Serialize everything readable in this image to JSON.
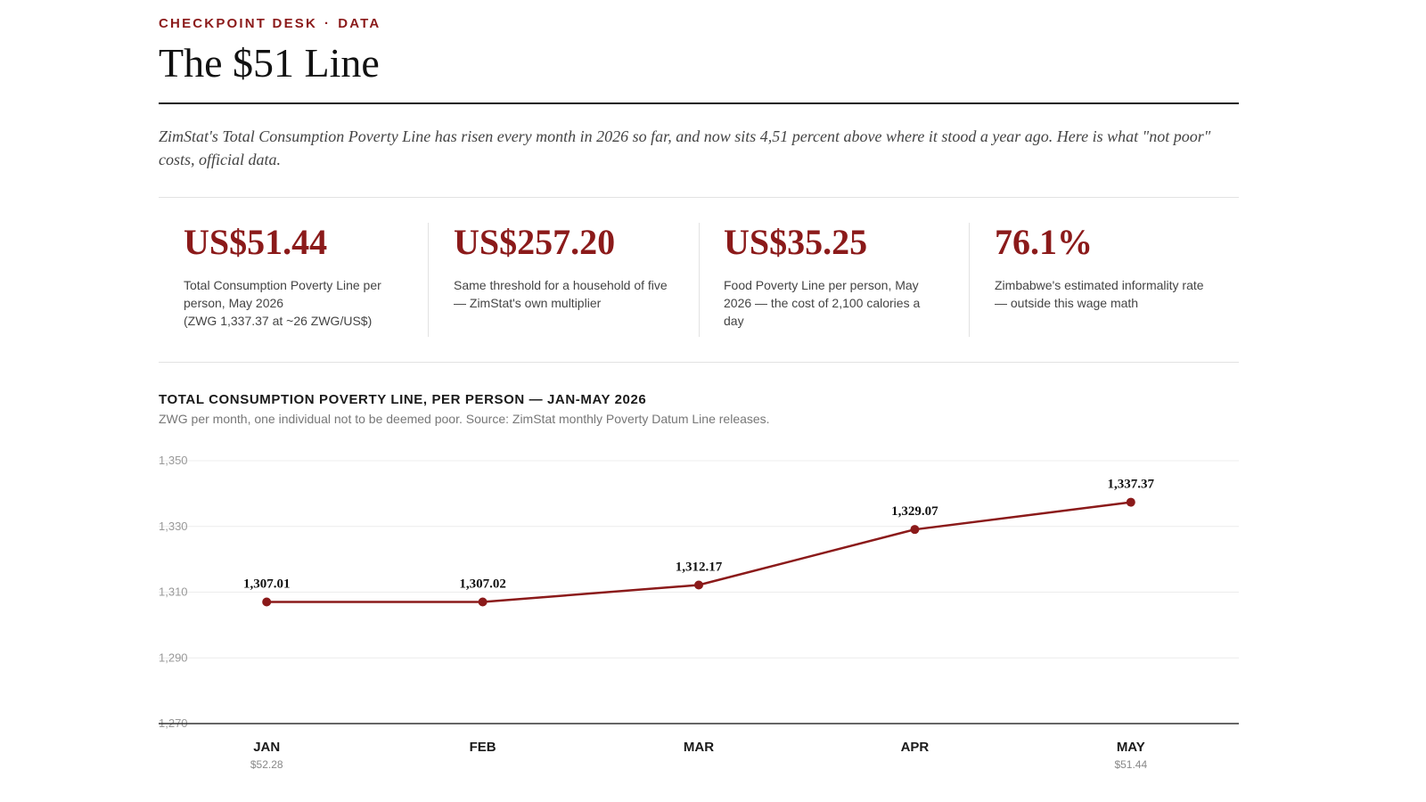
{
  "header": {
    "kicker_left": "CHECKPOINT DESK",
    "kicker_sep": "·",
    "kicker_right": "DATA",
    "title": "The $51 Line",
    "dek": "ZimStat's Total Consumption Poverty Line has risen every month in 2026 so far, and now sits 4,51 percent above where it stood a year ago. Here is what \"not poor\" costs, official data."
  },
  "stats": [
    {
      "value": "US$51.44",
      "desc": [
        "Total Consumption Poverty Line per person, May 2026",
        "(ZWG 1,337.37 at ~26 ZWG/US$)"
      ]
    },
    {
      "value": "US$257.20",
      "desc": [
        "Same threshold for a household of five — ZimStat's own multiplier"
      ]
    },
    {
      "value": "US$35.25",
      "desc": [
        "Food Poverty Line per person, May 2026 — the cost of 2,100 calories a day"
      ]
    },
    {
      "value": "76.1%",
      "desc": [
        "Zimbabwe's estimated informality rate — outside this wage math"
      ]
    }
  ],
  "chart": {
    "title": "TOTAL CONSUMPTION POVERTY LINE, PER PERSON — JAN-MAY 2026",
    "subtitle": "ZWG per month, one individual not to be deemed poor. Source: ZimStat monthly Poverty Datum Line releases."
  },
  "chart_data": {
    "type": "line",
    "categories": [
      "JAN",
      "FEB",
      "MAR",
      "APR",
      "MAY"
    ],
    "x_secondary_labels": [
      "$52.28",
      "",
      "",
      "",
      "$51.44"
    ],
    "series": [
      {
        "values": [
          1307.01,
          1307.02,
          1312.17,
          1329.07,
          1337.37
        ]
      }
    ],
    "data_labels": [
      "1,307.01",
      "1,307.02",
      "1,312.17",
      "1,329.07",
      "1,337.37"
    ],
    "y_ticks": [
      1350,
      1330,
      1310,
      1290,
      1270
    ],
    "y_tick_labels": [
      "1,350",
      "1,330",
      "1,310",
      "1,290",
      "1,270"
    ],
    "ylim": [
      1270,
      1350
    ],
    "grid": true,
    "legend": "none",
    "color": "#8b1a1a"
  }
}
